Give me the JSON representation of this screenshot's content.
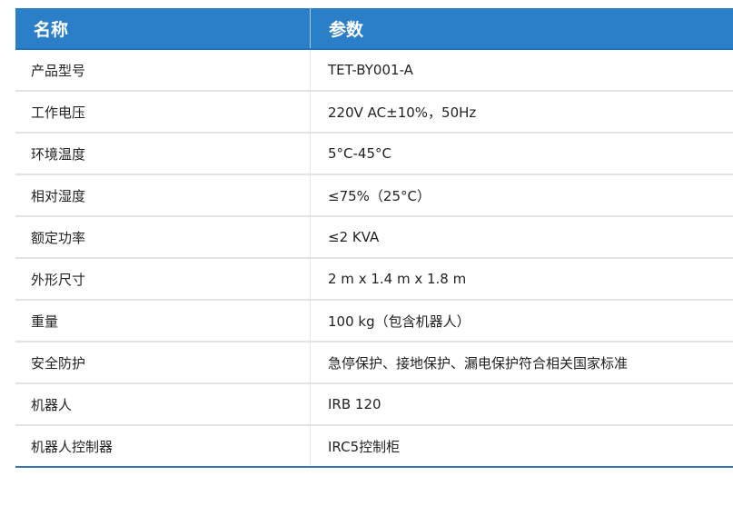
{
  "header": {
    "name": "名称",
    "value": "参数"
  },
  "colors": {
    "header_bg": "#2a7fc8",
    "header_text": "#ffffff"
  },
  "rows": [
    {
      "name": "产品型号",
      "value": "TET-BY001-A"
    },
    {
      "name": "工作电压",
      "value": "220V AC±10%，50Hz"
    },
    {
      "name": "环境温度",
      "value": "5°C-45°C"
    },
    {
      "name": "相对湿度",
      "value": "≤75%（25°C）"
    },
    {
      "name": "额定功率",
      "value": "≤2 KVA"
    },
    {
      "name": "外形尺寸",
      "value": "2 m x 1.4 m x 1.8 m"
    },
    {
      "name": "重量",
      "value": "100 kg（包含机器人）"
    },
    {
      "name": "安全防护",
      "value": "急停保护、接地保护、漏电保护符合相关国家标准"
    },
    {
      "name": "机器人",
      "value": "IRB 120"
    },
    {
      "name": "机器人控制器",
      "value": "IRC5控制柜"
    }
  ]
}
